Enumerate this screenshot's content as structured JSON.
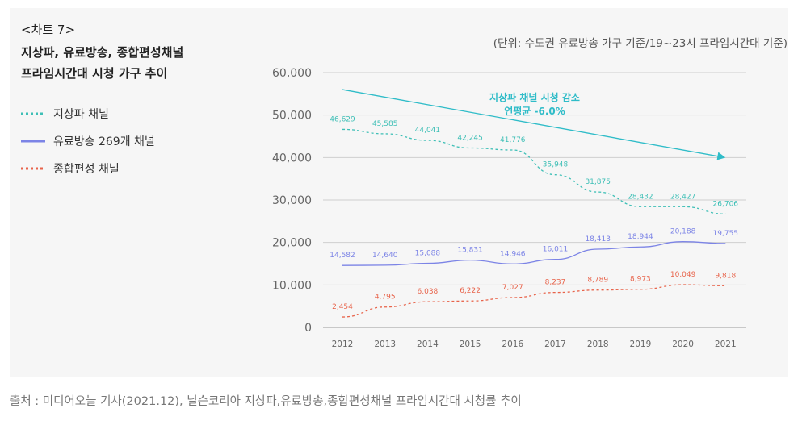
{
  "chart_label": "<차트 7>",
  "unit_note": "(단위: 수도권 유료방송 가구 기준/19~23시 프라임시간대 기준)",
  "source": "출처 : 미디어오늘 기사(2021.12), 닐슨코리아 지상파,유료방송,종합편성채널 프라임시간대 시청률 추이",
  "colors": {
    "terrestrial": "#3ebfb6",
    "paytv": "#7c84e6",
    "general": "#e8634a",
    "trend": "#2fbcc8",
    "grid": "#cfcfcf"
  },
  "chart_data": {
    "type": "line",
    "title": "지상파, 유료방송, 종합편성채널 프라임시간대 시청 가구 추이",
    "title_lines": [
      "지상파, 유료방송, 종합편성채널",
      "프라임시간대 시청 가구 추이"
    ],
    "categories": [
      "2012",
      "2013",
      "2014",
      "2015",
      "2016",
      "2017",
      "2018",
      "2019",
      "2020",
      "2021"
    ],
    "ylim": [
      0,
      60000
    ],
    "yticks": [
      0,
      10000,
      20000,
      30000,
      40000,
      50000,
      60000
    ],
    "ytick_labels": [
      "0",
      "10,000",
      "20,000",
      "30,000",
      "40,000",
      "50,000",
      "60,000"
    ],
    "grid": true,
    "series": [
      {
        "key": "terrestrial",
        "name": "지상파 채널",
        "style": "dotted",
        "values": [
          46629,
          45585,
          44041,
          42245,
          41776,
          35948,
          31875,
          28432,
          28427,
          26706
        ],
        "labels": [
          "46,629",
          "45,585",
          "44,041",
          "42,245",
          "41,776",
          "35,948",
          "31,875",
          "28,432",
          "28,427",
          "26,706"
        ]
      },
      {
        "key": "paytv",
        "name": "유료방송 269개 채널",
        "style": "solid",
        "values": [
          14582,
          14640,
          15088,
          15831,
          14946,
          16011,
          18413,
          18944,
          20188,
          19755
        ],
        "labels": [
          "14,582",
          "14,640",
          "15,088",
          "15,831",
          "14,946",
          "16,011",
          "18,413",
          "18,944",
          "20,188",
          "19,755"
        ]
      },
      {
        "key": "general",
        "name": "종합편성 채널",
        "style": "dotted",
        "values": [
          2454,
          4795,
          6038,
          6222,
          7027,
          8237,
          8789,
          8973,
          10049,
          9818
        ],
        "labels": [
          "2,454",
          "4,795",
          "6,038",
          "6,222",
          "7,027",
          "8,237",
          "8,789",
          "8,973",
          "10,049",
          "9,818"
        ]
      }
    ],
    "annotation": {
      "lines": [
        "지상파 채널 시청 감소",
        "연평균 -6.0%"
      ],
      "arrow_start": {
        "x": "2012",
        "y": 56000
      },
      "arrow_end": {
        "x": "2021",
        "y": 40000
      }
    }
  }
}
